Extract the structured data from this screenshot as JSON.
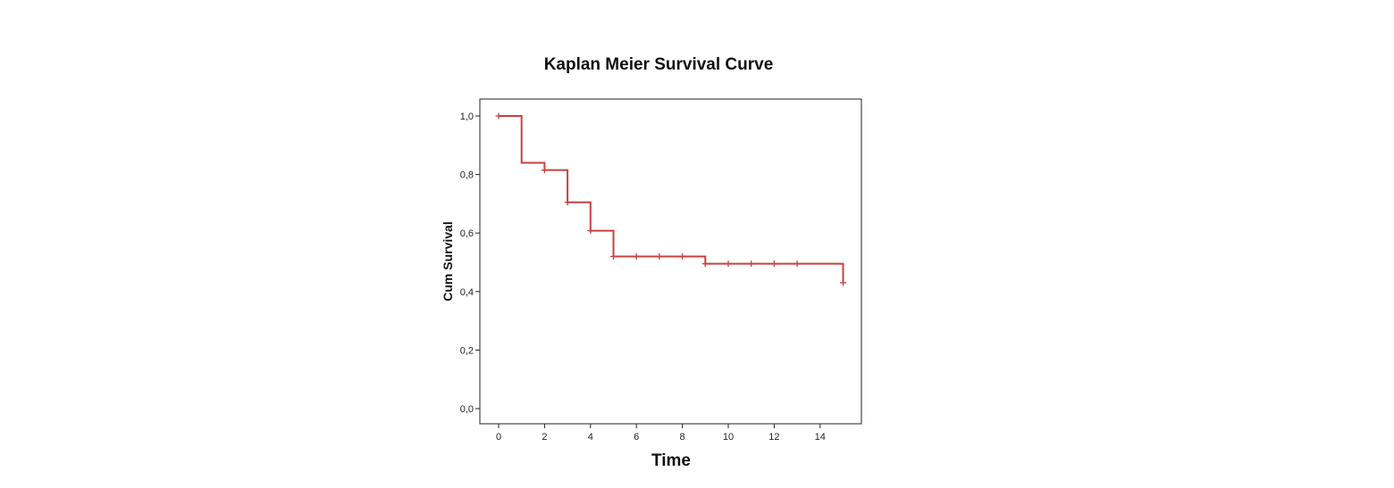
{
  "chart_data": {
    "type": "line",
    "subtype": "step",
    "title": "Kaplan Meier Survival Curve",
    "xlabel": "Time",
    "ylabel": "Cum Survival",
    "xlim": [
      0,
      15
    ],
    "ylim": [
      0,
      1
    ],
    "xticks": [
      0,
      2,
      4,
      6,
      8,
      10,
      12,
      14
    ],
    "xtick_labels": [
      "0",
      "2",
      "4",
      "6",
      "8",
      "10",
      "12",
      "14"
    ],
    "yticks": [
      0,
      0.2,
      0.4,
      0.6,
      0.8,
      1.0
    ],
    "ytick_labels": [
      "0,0",
      "0,2",
      "0,4",
      "0,6",
      "0,8",
      "1,0"
    ],
    "grid": false,
    "legend": "none",
    "series": [
      {
        "color": "#c94040",
        "steps": [
          {
            "x": 0,
            "y": 1.0
          },
          {
            "x": 1,
            "y": 0.84
          },
          {
            "x": 2,
            "y": 0.815
          },
          {
            "x": 3,
            "y": 0.705
          },
          {
            "x": 4,
            "y": 0.608
          },
          {
            "x": 5,
            "y": 0.52
          },
          {
            "x": 9,
            "y": 0.495
          },
          {
            "x": 15,
            "y": 0.43
          }
        ],
        "censored": [
          {
            "x": 0,
            "y": 1.0
          },
          {
            "x": 2,
            "y": 0.815
          },
          {
            "x": 3,
            "y": 0.705
          },
          {
            "x": 4,
            "y": 0.608
          },
          {
            "x": 5,
            "y": 0.52
          },
          {
            "x": 6,
            "y": 0.52
          },
          {
            "x": 7,
            "y": 0.52
          },
          {
            "x": 8,
            "y": 0.52
          },
          {
            "x": 9,
            "y": 0.495
          },
          {
            "x": 10,
            "y": 0.495
          },
          {
            "x": 11,
            "y": 0.495
          },
          {
            "x": 12,
            "y": 0.495
          },
          {
            "x": 13,
            "y": 0.495
          },
          {
            "x": 15,
            "y": 0.43
          }
        ]
      }
    ]
  }
}
